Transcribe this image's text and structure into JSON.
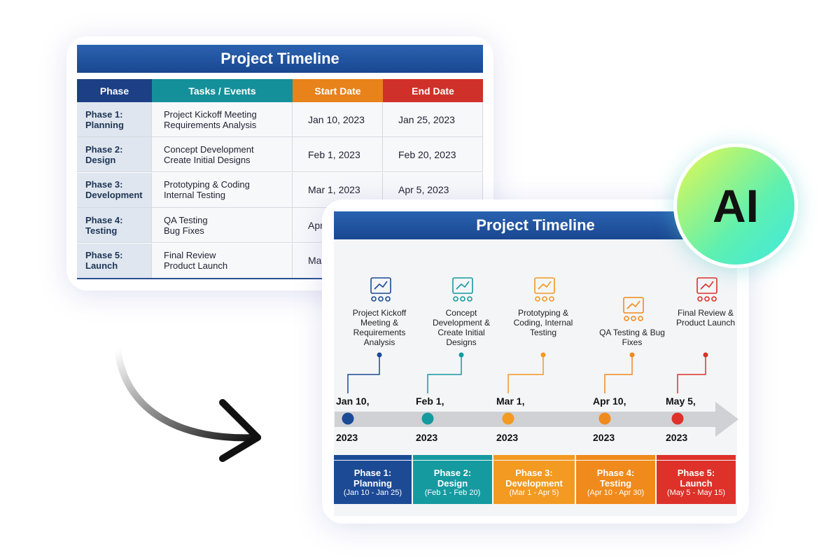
{
  "table": {
    "title": "Project Timeline",
    "headers": [
      "Phase",
      "Tasks / Events",
      "Start Date",
      "End Date"
    ],
    "header_colors": [
      "#1c3f85",
      "#14909a",
      "#e8821a",
      "#d0302a"
    ],
    "rows": [
      {
        "phase_num": "Phase 1:",
        "phase_name": "Planning",
        "task1": "Project Kickoff Meeting",
        "task2": "Requirements Analysis",
        "start": "Jan 10, 2023",
        "end": "Jan 25, 2023"
      },
      {
        "phase_num": "Phase 2:",
        "phase_name": "Design",
        "task1": "Concept Development",
        "task2": "Create Initial Designs",
        "start": "Feb 1, 2023",
        "end": "Feb 20, 2023"
      },
      {
        "phase_num": "Phase 3:",
        "phase_name": "Development",
        "task1": "Prototyping & Coding",
        "task2": "Internal Testing",
        "start": "Mar 1, 2023",
        "end": "Apr 5, 2023"
      },
      {
        "phase_num": "Phase 4:",
        "phase_name": "Testing",
        "task1": "QA Testing",
        "task2": "Bug Fixes",
        "start": "Apr",
        "end": ""
      },
      {
        "phase_num": "Phase 5:",
        "phase_name": "Launch",
        "task1": "Final Review",
        "task2": "Product Launch",
        "start": "Ma",
        "end": ""
      }
    ]
  },
  "timeline": {
    "title": "Project Timeline",
    "events": [
      {
        "icon": "presentation-icon",
        "label": "Project Kickoff Meeting & Requirements Analysis",
        "date": "Jan 10,",
        "year": "2023",
        "color": "#1c4a95",
        "phase": "Phase 1:",
        "name": "Planning",
        "range": "(Jan 10 - Jan 25)"
      },
      {
        "icon": "design-monitor-icon",
        "label": "Concept Development & Create Initial Designs",
        "date": "Feb 1,",
        "year": "2023",
        "color": "#159aa0",
        "phase": "Phase 2:",
        "name": "Design",
        "range": "(Feb 1 - Feb 20)"
      },
      {
        "icon": "code-gear-icon",
        "label": "Prototyping & Coding, Internal Testing",
        "date": "Mar 1,",
        "year": "2023",
        "color": "#f29a22",
        "phase": "Phase 3:",
        "name": "Development",
        "range": "(Mar 1 - Apr 5)"
      },
      {
        "icon": "magnifier-check-icon",
        "label": "QA Testing & Bug Fixes",
        "date": "Apr 10,",
        "year": "2023",
        "color": "#f08a1c",
        "phase": "Phase 4:",
        "name": "Testing",
        "range": "(Apr 10 - Apr 30)"
      },
      {
        "icon": "rocket-icon",
        "label": "Final Review & Product Launch",
        "date": "May 5,",
        "year": "2023",
        "color": "#dd3129",
        "phase": "Phase 5:",
        "name": "Launch",
        "range": "(May 5 - May 15)"
      }
    ]
  },
  "badge": {
    "text": "AI"
  }
}
